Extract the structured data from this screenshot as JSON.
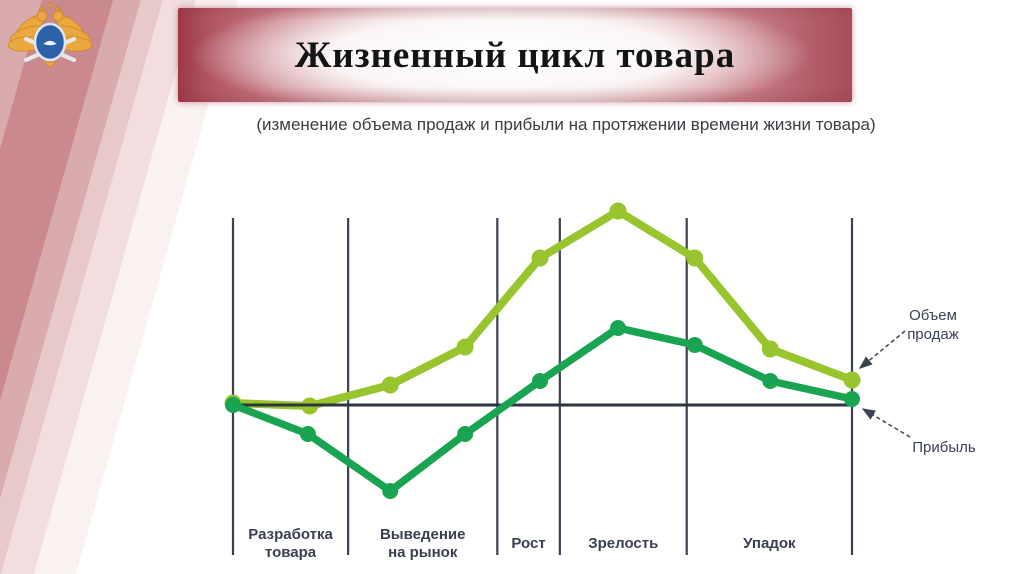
{
  "slide": {
    "title": "Жизненный цикл товара",
    "subtitle": "(изменение объема продаж и прибыли на протяжении времени жизни товара)"
  },
  "emblem": {
    "name": "golden double-headed eagle emblem with blue oval shield"
  },
  "colors": {
    "grid": "#3b4252",
    "axis": "#2e3440",
    "text": "#3b4252",
    "title_text": "#141414",
    "banner_rose": "#b25f6a",
    "sales_green": "#98c42d",
    "profit_green": "#18a451"
  },
  "chart_data": {
    "type": "line",
    "title": "Жизненный цикл товара",
    "xlabel": "",
    "ylabel": "",
    "grid": "vertical phase boundaries only",
    "legend_position": "right, with dashed arrows to line ends",
    "ylim": [
      -1.2,
      2.2
    ],
    "x_mode": "normalized 0..1 across plot width",
    "phases": [
      {
        "label": "Разработка\nтовара",
        "from": 0,
        "to": 0.186
      },
      {
        "label": "Выведение\nна рынок",
        "from": 0.186,
        "to": 0.427
      },
      {
        "label": "Рост",
        "from": 0.427,
        "to": 0.528
      },
      {
        "label": "Зрелость",
        "from": 0.528,
        "to": 0.733
      },
      {
        "label": "Упадок",
        "from": 0.733,
        "to": 1.0
      }
    ],
    "series": [
      {
        "name": "Объем продаж",
        "color": "#98c42d",
        "x": [
          0,
          0.124,
          0.254,
          0.375,
          0.496,
          0.622,
          0.746,
          0.868,
          1.0
        ],
        "y": [
          0.02,
          -0.01,
          0.2,
          0.58,
          1.47,
          1.94,
          1.47,
          0.56,
          0.25
        ]
      },
      {
        "name": "Прибыль",
        "color": "#18a451",
        "x": [
          0,
          0.121,
          0.254,
          0.375,
          0.496,
          0.622,
          0.746,
          0.868,
          1.0
        ],
        "y": [
          0.0,
          -0.29,
          -0.86,
          -0.29,
          0.24,
          0.77,
          0.6,
          0.24,
          0.06
        ]
      }
    ],
    "legend": [
      {
        "label": "Объем\nпродаж"
      },
      {
        "label": "Прибыль"
      }
    ]
  }
}
